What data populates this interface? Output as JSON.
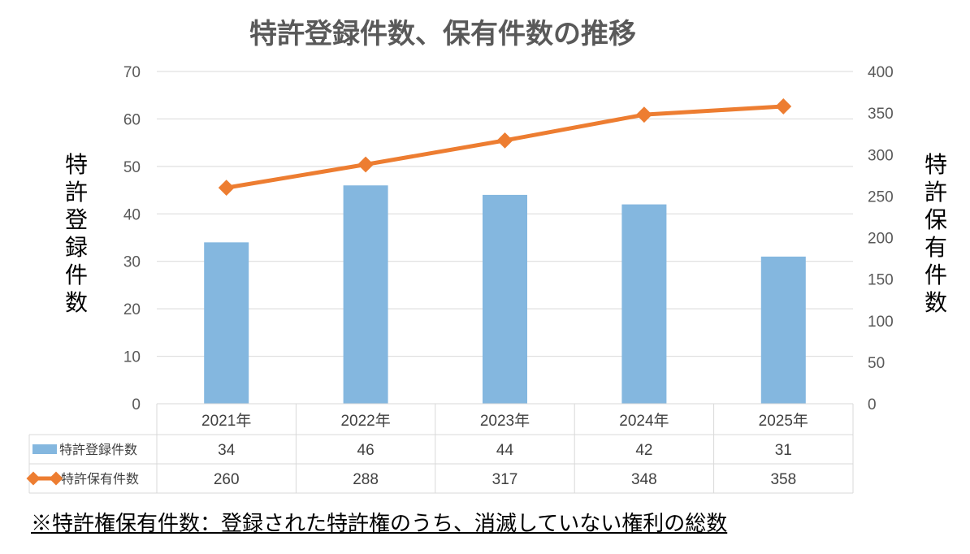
{
  "chart_data": {
    "type": "bar+line",
    "title": "特許登録件数、保有件数の推移",
    "categories": [
      "2021年",
      "2022年",
      "2023年",
      "2024年",
      "2025年"
    ],
    "series": [
      {
        "name": "特許登録件数",
        "type": "bar",
        "axis": "left",
        "color": "#84B7DF",
        "values": [
          34,
          46,
          44,
          42,
          31
        ]
      },
      {
        "name": "特許保有件数",
        "type": "line",
        "axis": "right",
        "color": "#ED7D31",
        "values": [
          260,
          288,
          317,
          348,
          358
        ]
      }
    ],
    "ylabel": "特許登録件数",
    "y2label": "特許保有件数",
    "ylim": [
      0,
      70
    ],
    "y2lim": [
      0,
      400
    ],
    "yticks": [
      "0",
      "10",
      "20",
      "30",
      "40",
      "50",
      "60",
      "70"
    ],
    "y2ticks": [
      "0",
      "50",
      "100",
      "150",
      "200",
      "250",
      "300",
      "350",
      "400"
    ],
    "grid": true,
    "data_table": true
  },
  "footnote": "※特許権保有件数：登録された特許権のうち、消滅していない権利の総数"
}
